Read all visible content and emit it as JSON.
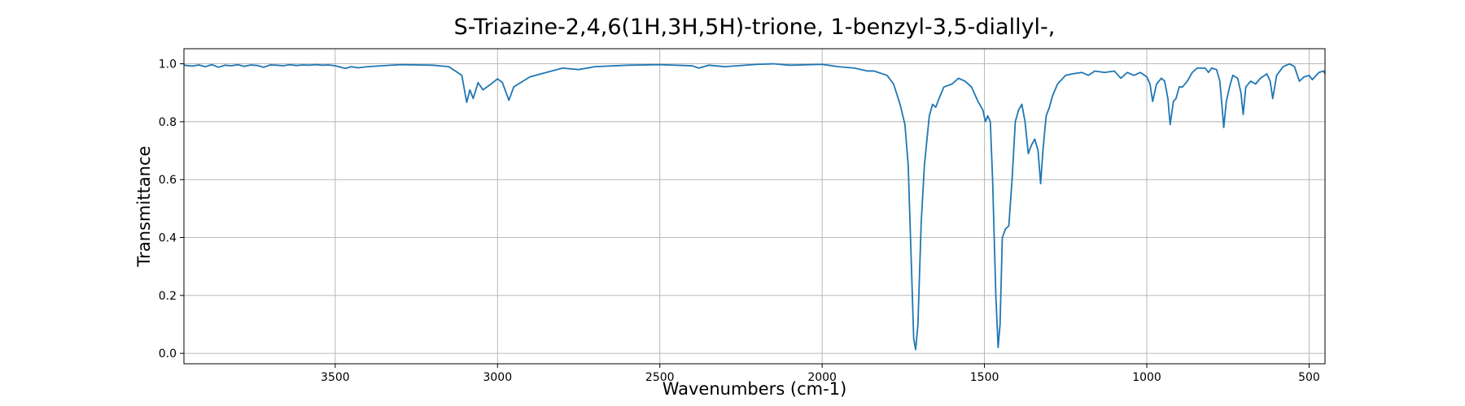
{
  "chart_data": {
    "type": "line",
    "title": "S-Triazine-2,4,6(1H,3H,5H)-trione, 1-benzyl-3,5-diallyl-,",
    "x_label": "Wavenumbers (cm-1)",
    "y_label": "Transmittance",
    "xlim": [
      3966,
      451
    ],
    "ylim": [
      -0.036,
      1.052
    ],
    "xticks": [
      3500,
      3000,
      2500,
      2000,
      1500,
      1000,
      500
    ],
    "yticks": [
      {
        "value": 0,
        "label": "0.0"
      },
      0.2,
      0.4,
      0.6,
      0.8,
      {
        "value": 1,
        "label": "1.0"
      }
    ],
    "grid": true,
    "series": [
      {
        "name": "Transmittance",
        "color": "#1f77b4",
        "x": [
          3966,
          3940,
          3920,
          3900,
          3880,
          3860,
          3840,
          3820,
          3800,
          3780,
          3760,
          3740,
          3720,
          3700,
          3680,
          3660,
          3640,
          3620,
          3600,
          3580,
          3560,
          3540,
          3520,
          3500,
          3480,
          3468,
          3450,
          3430,
          3400,
          3300,
          3200,
          3150,
          3110,
          3095,
          3085,
          3075,
          3060,
          3045,
          3020,
          3000,
          2985,
          2965,
          2950,
          2900,
          2850,
          2800,
          2750,
          2700,
          2600,
          2500,
          2400,
          2380,
          2350,
          2300,
          2200,
          2150,
          2100,
          2000,
          1950,
          1900,
          1860,
          1840,
          1800,
          1780,
          1760,
          1745,
          1735,
          1725,
          1718,
          1712,
          1705,
          1695,
          1685,
          1670,
          1660,
          1650,
          1640,
          1625,
          1600,
          1580,
          1560,
          1540,
          1520,
          1505,
          1497,
          1490,
          1482,
          1475,
          1465,
          1458,
          1452,
          1445,
          1435,
          1425,
          1415,
          1405,
          1395,
          1385,
          1375,
          1365,
          1355,
          1345,
          1335,
          1327,
          1320,
          1310,
          1300,
          1290,
          1275,
          1250,
          1230,
          1200,
          1180,
          1160,
          1130,
          1100,
          1080,
          1060,
          1040,
          1020,
          1000,
          990,
          982,
          970,
          955,
          945,
          935,
          928,
          918,
          910,
          900,
          890,
          875,
          860,
          845,
          820,
          810,
          800,
          785,
          775,
          768,
          763,
          755,
          745,
          735,
          720,
          710,
          703,
          695,
          680,
          665,
          650,
          630,
          620,
          612,
          600,
          580,
          560,
          545,
          530,
          515,
          500,
          490,
          470,
          455,
          451
        ],
        "values": [
          0.995,
          0.992,
          0.996,
          0.99,
          0.997,
          0.988,
          0.995,
          0.993,
          0.997,
          0.991,
          0.996,
          0.994,
          0.988,
          0.996,
          0.995,
          0.993,
          0.997,
          0.994,
          0.996,
          0.995,
          0.997,
          0.995,
          0.996,
          0.993,
          0.987,
          0.984,
          0.99,
          0.986,
          0.99,
          0.997,
          0.995,
          0.99,
          0.96,
          0.867,
          0.91,
          0.88,
          0.935,
          0.91,
          0.93,
          0.948,
          0.935,
          0.874,
          0.92,
          0.955,
          0.97,
          0.985,
          0.98,
          0.99,
          0.995,
          0.997,
          0.993,
          0.985,
          0.995,
          0.99,
          0.998,
          1.0,
          0.995,
          0.998,
          0.99,
          0.985,
          0.975,
          0.975,
          0.96,
          0.93,
          0.86,
          0.79,
          0.65,
          0.3,
          0.05,
          0.013,
          0.1,
          0.45,
          0.65,
          0.82,
          0.86,
          0.85,
          0.88,
          0.92,
          0.93,
          0.95,
          0.94,
          0.92,
          0.87,
          0.84,
          0.8,
          0.82,
          0.8,
          0.6,
          0.2,
          0.02,
          0.1,
          0.4,
          0.43,
          0.44,
          0.6,
          0.8,
          0.84,
          0.86,
          0.8,
          0.69,
          0.72,
          0.74,
          0.7,
          0.586,
          0.7,
          0.82,
          0.85,
          0.89,
          0.93,
          0.96,
          0.965,
          0.97,
          0.96,
          0.975,
          0.97,
          0.975,
          0.95,
          0.97,
          0.96,
          0.97,
          0.955,
          0.93,
          0.87,
          0.93,
          0.95,
          0.94,
          0.88,
          0.79,
          0.87,
          0.88,
          0.92,
          0.92,
          0.94,
          0.97,
          0.985,
          0.985,
          0.97,
          0.985,
          0.98,
          0.94,
          0.85,
          0.78,
          0.87,
          0.92,
          0.96,
          0.95,
          0.9,
          0.825,
          0.92,
          0.94,
          0.93,
          0.95,
          0.965,
          0.94,
          0.88,
          0.96,
          0.99,
          1.0,
          0.99,
          0.94,
          0.955,
          0.96,
          0.945,
          0.97,
          0.975,
          0.965
        ]
      }
    ]
  }
}
